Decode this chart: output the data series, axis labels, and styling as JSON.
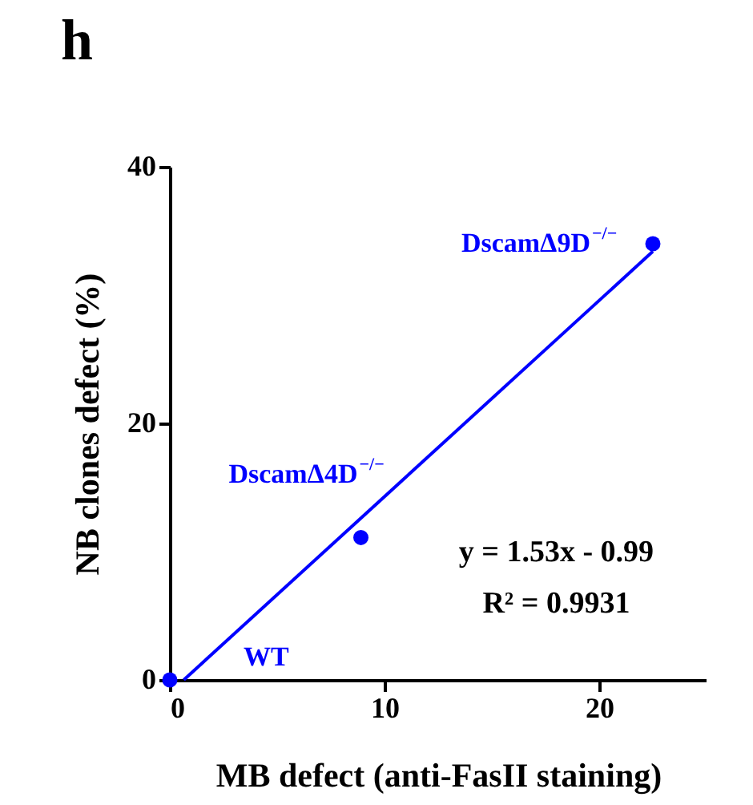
{
  "chart_data": {
    "type": "scatter",
    "title": "h",
    "xlabel": "MB defect (anti-FasII staining)",
    "ylabel": "NB clones defect (%)",
    "series": [
      {
        "x": [
          0,
          8.9,
          22.5
        ],
        "values": [
          0,
          11.1,
          34.0
        ],
        "color": "#0000ff",
        "marker": "circle"
      },
      {
        "type": "line",
        "x": [
          0.65,
          22.5
        ],
        "values": [
          0,
          33.4
        ],
        "color": "#0000ff",
        "marker": "none"
      }
    ],
    "xlim": [
      0,
      25
    ],
    "xticks": [
      0,
      10,
      20
    ],
    "ylim": [
      0,
      40
    ],
    "yticks": [
      0,
      20,
      40
    ],
    "grid": false,
    "line_style": "solid",
    "annotations": [
      {
        "text": "WT",
        "x": 0,
        "y": 0
      },
      {
        "text": "DscamΔ4D$^{−/−}$",
        "x": 8.9,
        "y": 11.1
      },
      {
        "text": "DscamΔ9D$^{−/−}$",
        "x": 22.5,
        "y": 34.0
      },
      "y = 1.53x - 0.99",
      "R² = 0.9931"
    ]
  }
}
